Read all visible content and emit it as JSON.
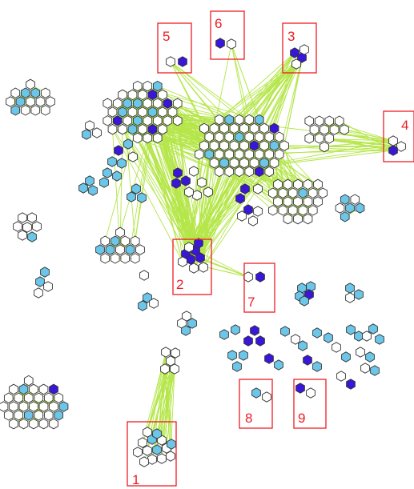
{
  "colors": {
    "edge": "#b5e64a",
    "node_white": "#ffffff",
    "node_light_blue": "#6cc6e8",
    "node_dark_blue": "#3a17d8",
    "node_stroke": "#333333",
    "box": "#ee1c24",
    "label": "#ee1c24"
  },
  "node_shape": "hexagon",
  "regions": [
    {
      "label": "1",
      "node_count": 14
    },
    {
      "label": "2",
      "node_count": 9
    },
    {
      "label": "3",
      "node_count": 4
    },
    {
      "label": "4",
      "node_count": 3
    },
    {
      "label": "5",
      "node_count": 2
    },
    {
      "label": "6",
      "node_count": 2
    },
    {
      "label": "7",
      "node_count": 2
    },
    {
      "label": "8",
      "node_count": 2
    },
    {
      "label": "9",
      "node_count": 2
    }
  ]
}
